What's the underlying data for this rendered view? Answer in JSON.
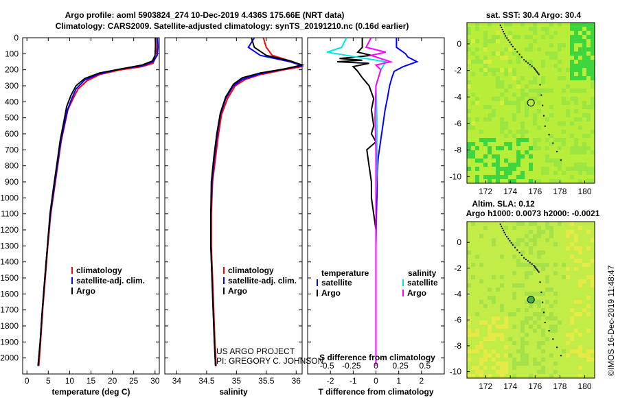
{
  "title": {
    "line1": "Argo profile: aoml 5903824_274 10-Dec-2019 4.436S 175.66E (NRT data)",
    "line2": "Climatology: CARS2009. Satellite-adjusted climatology: synTS_20191210.nc (0.16d earlier)"
  },
  "colors": {
    "climatology": "#ff0000",
    "satellite": "#0000ff",
    "argo": "#000000",
    "argo_salinity": "#ff00ff",
    "satellite_salinity": "#00e5e5"
  },
  "credits": {
    "project": "US ARGO PROJECT",
    "pi": "PI: GREGORY C. JOHNSON",
    "imos": "©IMOS 16-Dec-2019 11:48:47"
  },
  "chart_data": [
    {
      "type": "line",
      "name": "temperature-profile",
      "xlabel": "temperature (deg C)",
      "ylabel": "",
      "xlim": [
        -1,
        31
      ],
      "ylim": [
        2100,
        0
      ],
      "xticks": [
        0,
        5,
        10,
        15,
        20,
        25,
        30
      ],
      "yticks": [
        0,
        100,
        200,
        300,
        400,
        500,
        600,
        700,
        800,
        900,
        1000,
        1100,
        1200,
        1300,
        1400,
        1500,
        1600,
        1700,
        1800,
        1900,
        2000
      ],
      "legend": [
        "climatology",
        "satellite-adj. clim.",
        "Argo"
      ],
      "series": [
        {
          "name": "climatology",
          "color": "#ff0000",
          "points": [
            [
              30.2,
              0
            ],
            [
              30.3,
              60
            ],
            [
              30.4,
              110
            ],
            [
              29.5,
              160
            ],
            [
              27,
              180
            ],
            [
              22,
              200
            ],
            [
              17,
              230
            ],
            [
              14,
              270
            ],
            [
              12,
              320
            ],
            [
              10.8,
              380
            ],
            [
              9.6,
              450
            ],
            [
              8.8,
              550
            ],
            [
              8,
              650
            ],
            [
              7.2,
              800
            ],
            [
              6.4,
              950
            ],
            [
              5.6,
              1100
            ],
            [
              4.9,
              1300
            ],
            [
              4.3,
              1500
            ],
            [
              3.7,
              1700
            ],
            [
              3.2,
              1900
            ],
            [
              2.8,
              2050
            ]
          ]
        },
        {
          "name": "satellite-adj. clim.",
          "color": "#0000ff",
          "points": [
            [
              30.6,
              0
            ],
            [
              30.7,
              60
            ],
            [
              30.5,
              110
            ],
            [
              29.5,
              150
            ],
            [
              27,
              175
            ],
            [
              22,
              195
            ],
            [
              17,
              225
            ],
            [
              13.5,
              265
            ],
            [
              11.5,
              320
            ],
            [
              10.5,
              380
            ],
            [
              9.5,
              450
            ],
            [
              8.7,
              550
            ],
            [
              7.9,
              650
            ],
            [
              7.1,
              800
            ],
            [
              6.3,
              950
            ],
            [
              5.5,
              1100
            ],
            [
              4.8,
              1300
            ],
            [
              4.2,
              1500
            ],
            [
              3.6,
              1700
            ],
            [
              3.1,
              1900
            ],
            [
              2.6,
              2050
            ]
          ]
        },
        {
          "name": "Argo",
          "color": "#000000",
          "points": [
            [
              30.1,
              0
            ],
            [
              30.1,
              60
            ],
            [
              30,
              110
            ],
            [
              29.4,
              145
            ],
            [
              27,
              170
            ],
            [
              22,
              195
            ],
            [
              17,
              220
            ],
            [
              13.5,
              255
            ],
            [
              11.5,
              300
            ],
            [
              10.3,
              360
            ],
            [
              9.3,
              430
            ],
            [
              8.6,
              530
            ],
            [
              7.8,
              640
            ],
            [
              7,
              790
            ],
            [
              6.2,
              940
            ],
            [
              5.4,
              1100
            ],
            [
              4.8,
              1300
            ],
            [
              4.2,
              1500
            ],
            [
              3.6,
              1700
            ],
            [
              3.1,
              1900
            ],
            [
              2.6,
              2050
            ]
          ]
        }
      ]
    },
    {
      "type": "line",
      "name": "salinity-profile",
      "xlabel": "salinity",
      "ylabel": "",
      "xlim": [
        33.8,
        36.1
      ],
      "ylim": [
        2100,
        0
      ],
      "xticks": [
        34,
        34.5,
        35,
        35.5,
        36
      ],
      "xticklabels": [
        "34",
        "34.5",
        "35",
        "35.5",
        "36"
      ],
      "legend": [
        "climatology",
        "satellite-adj. clim.",
        "Argo"
      ],
      "series": [
        {
          "name": "climatology",
          "color": "#ff0000",
          "points": [
            [
              35.45,
              0
            ],
            [
              35.5,
              60
            ],
            [
              35.6,
              110
            ],
            [
              35.95,
              150
            ],
            [
              36.1,
              180
            ],
            [
              35.8,
              200
            ],
            [
              35.4,
              230
            ],
            [
              35.15,
              260
            ],
            [
              34.98,
              300
            ],
            [
              34.85,
              380
            ],
            [
              34.75,
              480
            ],
            [
              34.7,
              600
            ],
            [
              34.65,
              750
            ],
            [
              34.6,
              900
            ],
            [
              34.58,
              1100
            ],
            [
              34.58,
              1300
            ],
            [
              34.6,
              1500
            ],
            [
              34.62,
              1700
            ],
            [
              34.64,
              1900
            ],
            [
              34.66,
              2050
            ]
          ]
        },
        {
          "name": "satellite-adj. clim.",
          "color": "#0000ff",
          "points": [
            [
              35.3,
              0
            ],
            [
              35.2,
              60
            ],
            [
              35.4,
              110
            ],
            [
              35.9,
              150
            ],
            [
              36.1,
              175
            ],
            [
              35.8,
              195
            ],
            [
              35.4,
              225
            ],
            [
              35.1,
              260
            ],
            [
              34.95,
              300
            ],
            [
              34.82,
              380
            ],
            [
              34.73,
              480
            ],
            [
              34.68,
              600
            ],
            [
              34.63,
              750
            ],
            [
              34.59,
              900
            ],
            [
              34.57,
              1100
            ],
            [
              34.57,
              1300
            ],
            [
              34.59,
              1500
            ],
            [
              34.61,
              1700
            ],
            [
              34.63,
              1900
            ],
            [
              34.65,
              2050
            ]
          ]
        },
        {
          "name": "Argo",
          "color": "#000000",
          "points": [
            [
              35.25,
              0
            ],
            [
              35.3,
              60
            ],
            [
              35.5,
              110
            ],
            [
              35.9,
              145
            ],
            [
              36.1,
              170
            ],
            [
              35.8,
              195
            ],
            [
              35.4,
              220
            ],
            [
              35.1,
              250
            ],
            [
              34.95,
              290
            ],
            [
              34.82,
              370
            ],
            [
              34.73,
              470
            ],
            [
              34.67,
              600
            ],
            [
              34.62,
              750
            ],
            [
              34.58,
              900
            ],
            [
              34.57,
              1100
            ],
            [
              34.57,
              1300
            ],
            [
              34.59,
              1500
            ],
            [
              34.61,
              1700
            ],
            [
              34.63,
              1900
            ],
            [
              34.65,
              2050
            ]
          ]
        }
      ]
    },
    {
      "type": "line",
      "name": "difference-profile",
      "xlabel": "T difference from climatology",
      "x2label": "S difference from climatology",
      "xlim": [
        -3,
        3
      ],
      "ylim": [
        2100,
        0
      ],
      "xticks": [
        -2,
        -1,
        0,
        1,
        2
      ],
      "xticklabels": [
        "-2",
        "-1",
        "0",
        "1",
        "2"
      ],
      "x2ticks": [
        -0.5,
        -0.25,
        0,
        0.25,
        0.5
      ],
      "x2ticklabels": [
        "-0.5",
        "-0.25",
        "0",
        "0.25",
        "0.5"
      ],
      "legend_temperature_title": "temperature",
      "legend_salinity_title": "salinity",
      "legend_temperature": [
        "satellite",
        "Argo"
      ],
      "legend_salinity": [
        "satellite",
        "Argo"
      ],
      "series": [
        {
          "name": "T satellite",
          "color": "#0000ff",
          "points": [
            [
              0.9,
              0
            ],
            [
              0.9,
              60
            ],
            [
              1.3,
              100
            ],
            [
              1.4,
              120
            ],
            [
              1.8,
              150
            ],
            [
              1.2,
              180
            ],
            [
              0.8,
              210
            ],
            [
              0.7,
              250
            ],
            [
              0.6,
              300
            ],
            [
              0.5,
              380
            ],
            [
              0.4,
              450
            ],
            [
              0.3,
              550
            ],
            [
              0.2,
              650
            ],
            [
              0.1,
              750
            ],
            [
              0.05,
              850
            ],
            [
              0.05,
              950
            ],
            [
              0.02,
              1100
            ],
            [
              0,
              1300
            ]
          ]
        },
        {
          "name": "T Argo",
          "color": "#000000",
          "points": [
            [
              -0.6,
              0
            ],
            [
              -0.6,
              60
            ],
            [
              -0.8,
              90
            ],
            [
              -0.2,
              110
            ],
            [
              -1.6,
              130
            ],
            [
              -0.6,
              140
            ],
            [
              -1.7,
              150
            ],
            [
              -0.3,
              160
            ],
            [
              -1,
              180
            ],
            [
              -0.8,
              210
            ],
            [
              -0.6,
              250
            ],
            [
              -0.3,
              300
            ],
            [
              -0.1,
              380
            ],
            [
              -0.2,
              450
            ],
            [
              -0.1,
              550
            ],
            [
              -0.2,
              600
            ],
            [
              0,
              650
            ],
            [
              -0.4,
              700
            ],
            [
              -0.3,
              800
            ],
            [
              -0.2,
              900
            ],
            [
              -0.2,
              1000
            ],
            [
              -0.1,
              1100
            ],
            [
              0,
              1200
            ]
          ]
        },
        {
          "name": "S satellite",
          "color": "#00e5e5",
          "points": [
            [
              -0.3,
              0
            ],
            [
              -0.35,
              60
            ],
            [
              -0.5,
              90
            ],
            [
              -0.3,
              110
            ],
            [
              0.1,
              150
            ],
            [
              0.05,
              200
            ],
            [
              0,
              300
            ],
            [
              0.01,
              500
            ],
            [
              0.01,
              800
            ],
            [
              0,
              1000
            ],
            [
              0,
              1300
            ],
            [
              0,
              1500
            ],
            [
              0,
              2050
            ]
          ]
        },
        {
          "name": "S Argo",
          "color": "#ff00ff",
          "points": [
            [
              -0.05,
              0
            ],
            [
              -0.1,
              60
            ],
            [
              0.1,
              90
            ],
            [
              -0.05,
              110
            ],
            [
              0.15,
              150
            ],
            [
              0,
              170
            ],
            [
              0.05,
              200
            ],
            [
              0,
              300
            ],
            [
              -0.01,
              500
            ],
            [
              0,
              700
            ],
            [
              0,
              900
            ],
            [
              0,
              1100
            ],
            [
              0,
              1300
            ],
            [
              0,
              1500
            ],
            [
              0,
              1700
            ],
            [
              0,
              2050
            ]
          ]
        }
      ]
    },
    {
      "type": "heatmap",
      "name": "sst-map",
      "title": "sat. SST: 30.4  Argo: 30.4",
      "xlim": [
        170.5,
        180.8
      ],
      "ylim": [
        -10.5,
        1.6
      ],
      "xticks": [
        172,
        174,
        176,
        178,
        180
      ],
      "xticklabels": [
        "172",
        "174",
        "176",
        "178",
        "180"
      ],
      "yticks": [
        0,
        -2,
        -4,
        -6,
        -8,
        -10
      ],
      "yticklabels": [
        "0",
        "-2",
        "-4",
        "-6",
        "-8",
        "-10"
      ],
      "float_position": [
        175.66,
        -4.436
      ],
      "track": [
        [
          173.2,
          1.4
        ],
        [
          173.6,
          0.6
        ],
        [
          174.2,
          -0.2
        ],
        [
          175.1,
          -1.2
        ],
        [
          175.9,
          -1.8
        ],
        [
          176.3,
          -2.3
        ],
        [
          176.8,
          -6.2
        ],
        [
          178.4,
          -9.4
        ]
      ]
    },
    {
      "type": "heatmap",
      "name": "sla-map",
      "title": "Altim. SLA: 0.12",
      "subtitle": "Argo h1000: 0.0073 h2000: -0.0021",
      "xlim": [
        170.5,
        180.8
      ],
      "ylim": [
        -10.5,
        1.6
      ],
      "xticks": [
        172,
        174,
        176,
        178,
        180
      ],
      "xticklabels": [
        "172",
        "174",
        "176",
        "178",
        "180"
      ],
      "yticks": [
        0,
        -2,
        -4,
        -6,
        -8,
        -10
      ],
      "yticklabels": [
        "0",
        "-2",
        "-4",
        "-6",
        "-8",
        "-10"
      ],
      "float_position": [
        175.66,
        -4.436
      ],
      "track": [
        [
          173.2,
          1.4
        ],
        [
          173.6,
          0.6
        ],
        [
          174.2,
          -0.2
        ],
        [
          175.1,
          -1.2
        ],
        [
          175.9,
          -1.8
        ],
        [
          176.3,
          -2.3
        ],
        [
          176.8,
          -6.2
        ],
        [
          178.4,
          -9.4
        ]
      ]
    }
  ]
}
